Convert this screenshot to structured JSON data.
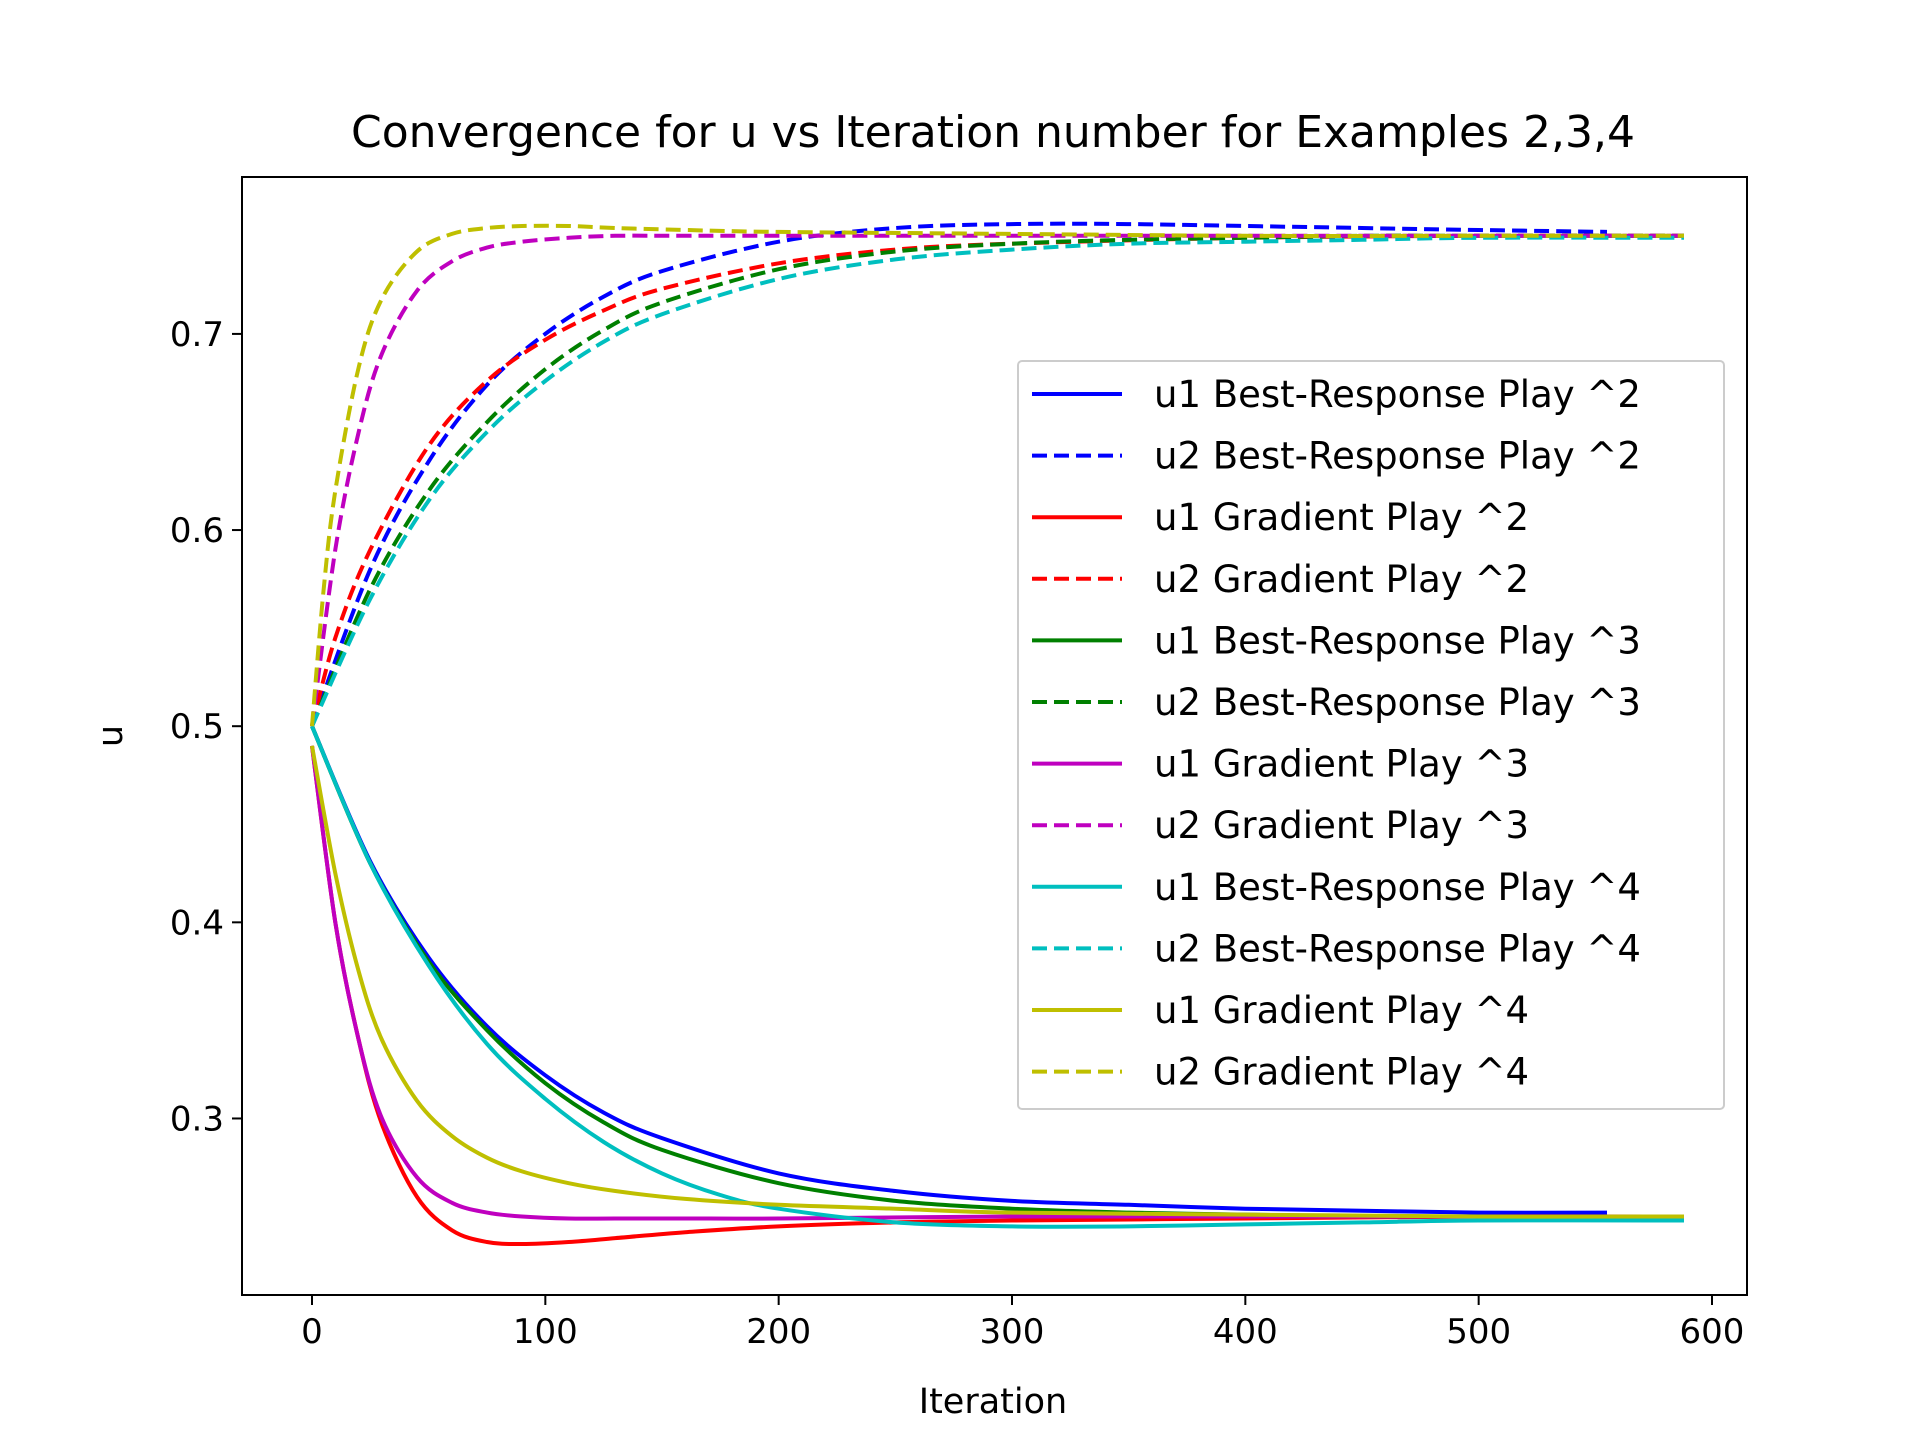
{
  "chart_data": {
    "type": "line",
    "title": "Convergence for u vs Iteration number for Examples 2,3,4",
    "xlabel": "Iteration",
    "ylabel": "u",
    "xlim": [
      -30,
      615
    ],
    "ylim": [
      0.21,
      0.78
    ],
    "xticks": [
      0,
      100,
      200,
      300,
      400,
      500,
      600
    ],
    "xtick_labels": [
      "0",
      "100",
      "200",
      "300",
      "400",
      "500",
      "600"
    ],
    "yticks": [
      0.3,
      0.4,
      0.5,
      0.6,
      0.7
    ],
    "ytick_labels": [
      "0.3",
      "0.4",
      "0.5",
      "0.6",
      "0.7"
    ],
    "grid": false,
    "legend_position": "center-right",
    "series": [
      {
        "name": "u1 Best-Response Play ^2",
        "color": "#0000ff",
        "style": "solid",
        "x": [
          0,
          25,
          50,
          75,
          100,
          125,
          150,
          200,
          250,
          300,
          350,
          400,
          450,
          500,
          555
        ],
        "y": [
          0.5,
          0.431,
          0.382,
          0.347,
          0.322,
          0.303,
          0.29,
          0.272,
          0.263,
          0.258,
          0.256,
          0.254,
          0.253,
          0.252,
          0.252
        ]
      },
      {
        "name": "u2 Best-Response Play ^2",
        "color": "#0000ff",
        "style": "dashed",
        "x": [
          0,
          25,
          50,
          75,
          100,
          125,
          150,
          200,
          250,
          300,
          350,
          400,
          450,
          500,
          555
        ],
        "y": [
          0.5,
          0.58,
          0.635,
          0.674,
          0.7,
          0.719,
          0.732,
          0.747,
          0.754,
          0.756,
          0.756,
          0.755,
          0.754,
          0.753,
          0.752
        ]
      },
      {
        "name": "u1 Gradient Play ^2",
        "color": "#ff0000",
        "style": "solid",
        "x": [
          0,
          10,
          20,
          30,
          45,
          60,
          75,
          90,
          110,
          130,
          160,
          200,
          250,
          300,
          400,
          500,
          588
        ],
        "y": [
          0.49,
          0.4,
          0.34,
          0.297,
          0.26,
          0.243,
          0.237,
          0.236,
          0.237,
          0.239,
          0.242,
          0.245,
          0.247,
          0.248,
          0.249,
          0.25,
          0.25
        ]
      },
      {
        "name": "u2 Gradient Play ^2",
        "color": "#ff0000",
        "style": "dashed",
        "x": [
          0,
          10,
          25,
          50,
          75,
          100,
          125,
          150,
          200,
          250,
          300,
          400,
          500,
          588
        ],
        "y": [
          0.5,
          0.545,
          0.59,
          0.643,
          0.676,
          0.697,
          0.712,
          0.723,
          0.736,
          0.743,
          0.746,
          0.749,
          0.75,
          0.75
        ]
      },
      {
        "name": "u1 Best-Response Play ^3",
        "color": "#008000",
        "style": "solid",
        "x": [
          0,
          25,
          50,
          75,
          100,
          125,
          150,
          200,
          250,
          300,
          350,
          400,
          450,
          500,
          588
        ],
        "y": [
          0.5,
          0.43,
          0.38,
          0.345,
          0.318,
          0.298,
          0.284,
          0.267,
          0.258,
          0.254,
          0.252,
          0.251,
          0.25,
          0.25,
          0.25
        ]
      },
      {
        "name": "u2 Best-Response Play ^3",
        "color": "#008000",
        "style": "dashed",
        "x": [
          0,
          25,
          50,
          75,
          100,
          125,
          150,
          200,
          250,
          300,
          350,
          400,
          450,
          500,
          588
        ],
        "y": [
          0.5,
          0.57,
          0.62,
          0.655,
          0.682,
          0.702,
          0.716,
          0.733,
          0.742,
          0.746,
          0.748,
          0.749,
          0.75,
          0.75,
          0.75
        ]
      },
      {
        "name": "u1 Gradient Play ^3",
        "color": "#bf00bf",
        "style": "solid",
        "x": [
          0,
          10,
          20,
          30,
          45,
          60,
          75,
          90,
          110,
          130,
          160,
          200,
          300,
          400,
          500,
          588
        ],
        "y": [
          0.49,
          0.4,
          0.34,
          0.3,
          0.27,
          0.257,
          0.252,
          0.25,
          0.249,
          0.249,
          0.249,
          0.249,
          0.25,
          0.25,
          0.25,
          0.25
        ]
      },
      {
        "name": "u2 Gradient Play ^3",
        "color": "#bf00bf",
        "style": "dashed",
        "x": [
          0,
          10,
          20,
          30,
          45,
          60,
          75,
          90,
          110,
          130,
          160,
          200,
          300,
          400,
          500,
          588
        ],
        "y": [
          0.5,
          0.59,
          0.65,
          0.69,
          0.722,
          0.737,
          0.744,
          0.747,
          0.749,
          0.75,
          0.75,
          0.75,
          0.75,
          0.75,
          0.75,
          0.75
        ]
      },
      {
        "name": "u1 Best-Response Play ^4",
        "color": "#00bfbf",
        "style": "solid",
        "x": [
          0,
          25,
          50,
          75,
          100,
          125,
          150,
          175,
          200,
          250,
          300,
          350,
          400,
          450,
          500,
          588
        ],
        "y": [
          0.5,
          0.43,
          0.378,
          0.338,
          0.31,
          0.288,
          0.272,
          0.261,
          0.254,
          0.247,
          0.245,
          0.245,
          0.246,
          0.247,
          0.248,
          0.248
        ]
      },
      {
        "name": "u2 Best-Response Play ^4",
        "color": "#00bfbf",
        "style": "dashed",
        "x": [
          0,
          25,
          50,
          75,
          100,
          125,
          150,
          200,
          250,
          300,
          350,
          400,
          450,
          500,
          588
        ],
        "y": [
          0.5,
          0.565,
          0.615,
          0.65,
          0.676,
          0.696,
          0.71,
          0.728,
          0.738,
          0.743,
          0.746,
          0.747,
          0.748,
          0.749,
          0.749
        ]
      },
      {
        "name": "u1 Gradient Play ^4",
        "color": "#bfbf00",
        "style": "solid",
        "x": [
          0,
          10,
          20,
          30,
          45,
          60,
          75,
          90,
          110,
          130,
          160,
          200,
          250,
          300,
          400,
          500,
          588
        ],
        "y": [
          0.49,
          0.425,
          0.375,
          0.34,
          0.309,
          0.291,
          0.28,
          0.273,
          0.267,
          0.263,
          0.259,
          0.256,
          0.254,
          0.252,
          0.251,
          0.25,
          0.25
        ]
      },
      {
        "name": "u2 Gradient Play ^4",
        "color": "#bfbf00",
        "style": "dashed",
        "x": [
          0,
          5,
          10,
          20,
          30,
          45,
          60,
          75,
          90,
          110,
          130,
          160,
          200,
          300,
          400,
          500,
          588
        ],
        "y": [
          0.5,
          0.57,
          0.62,
          0.683,
          0.718,
          0.742,
          0.751,
          0.754,
          0.755,
          0.755,
          0.754,
          0.753,
          0.752,
          0.751,
          0.75,
          0.75,
          0.75
        ]
      }
    ]
  }
}
